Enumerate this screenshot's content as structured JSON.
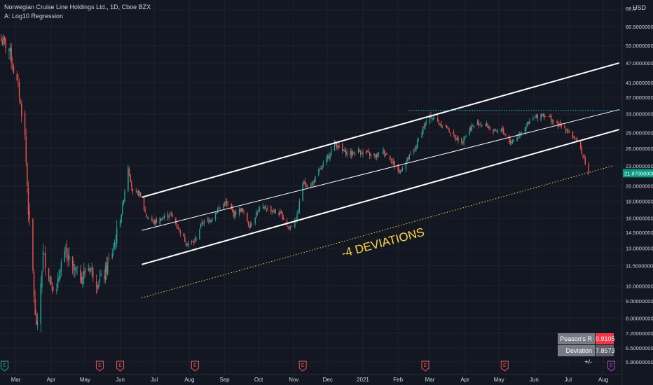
{
  "header": {
    "symbol_line": "Norwegian Cruise Line Holdings Ltd., 1D, Cboe BZX",
    "indicator_line": "A: Log10 Regression"
  },
  "currency": "USD",
  "annotation": "-4 DEVIATIONS",
  "stats": {
    "pearson_label": "Peason's R",
    "pearson_value": "0.9105",
    "deviation_label": "Deviation +/-",
    "deviation_value": "7.8573"
  },
  "colors": {
    "background": "#131722",
    "up_candle": "#26a69a",
    "down_candle": "#ef5350",
    "channel_line": "#ffffff",
    "resistance_line": "#26c6da",
    "deviation_line": "#ffd740",
    "annotation": "#ffd740",
    "last_price_bg": "#089981",
    "earnings_marker": "#ef5350",
    "earnings_marker_first": "#26a69a",
    "earnings_marker_last": "#ab47bc"
  },
  "chart_data": {
    "type": "candlestick",
    "log_scale": true,
    "grid": true,
    "ylim": [
      5.7,
      70
    ],
    "xlim": [
      "2020-02-16",
      "2021-08-17"
    ],
    "y_tick_labels": [
      "68.0",
      "60.50000000",
      "53.00000000",
      "47.00000000",
      "41.00000000",
      "37.00000000",
      "33.00000000",
      "29.00000000",
      "26.00000000",
      "23.00000000",
      "20.00000000",
      "18.00000000",
      "16.00000000",
      "14.50000000",
      "13.00000000",
      "11.50000000",
      "10.00000000",
      "9.00000000",
      "8.00000000",
      "7.20000000",
      "6.50000000",
      "5.90000000"
    ],
    "y_tick_values": [
      68.0,
      60.5,
      53.0,
      47.0,
      41.0,
      37.0,
      33.0,
      29.0,
      26.0,
      23.0,
      20.0,
      18.0,
      16.0,
      14.5,
      13.0,
      11.5,
      10.0,
      9.0,
      8.0,
      7.2,
      6.5,
      5.9
    ],
    "x_tick_labels": [
      "Mar",
      "Apr",
      "May",
      "Jun",
      "Jul",
      "Aug",
      "Sep",
      "Oct",
      "Nov",
      "Dec",
      "2021",
      "Feb",
      "Mar",
      "Apr",
      "May",
      "Jun",
      "Jul",
      "Aug"
    ],
    "x_tick_dates": [
      "2020-03-01",
      "2020-04-01",
      "2020-05-01",
      "2020-06-01",
      "2020-07-01",
      "2020-08-01",
      "2020-09-01",
      "2020-10-01",
      "2020-11-01",
      "2020-12-01",
      "2021-01-01",
      "2021-02-01",
      "2021-03-01",
      "2021-04-01",
      "2021-05-01",
      "2021-06-01",
      "2021-07-01",
      "2021-08-01"
    ],
    "last_price": 21.87,
    "last_price_label": "21.87000000",
    "price_path": [
      [
        "2020-02-17",
        55.0
      ],
      [
        "2020-02-24",
        52.0
      ],
      [
        "2020-02-28",
        45.0
      ],
      [
        "2020-03-04",
        38.0
      ],
      [
        "2020-03-09",
        28.0
      ],
      [
        "2020-03-12",
        17.0
      ],
      [
        "2020-03-16",
        11.0
      ],
      [
        "2020-03-18",
        8.0
      ],
      [
        "2020-03-20",
        7.5
      ],
      [
        "2020-03-25",
        12.5
      ],
      [
        "2020-03-31",
        10.5
      ],
      [
        "2020-04-06",
        9.5
      ],
      [
        "2020-04-09",
        11.5
      ],
      [
        "2020-04-14",
        12.5
      ],
      [
        "2020-04-20",
        11.2
      ],
      [
        "2020-04-28",
        10.6
      ],
      [
        "2020-05-05",
        11.5
      ],
      [
        "2020-05-12",
        10.2
      ],
      [
        "2020-05-18",
        10.8
      ],
      [
        "2020-05-26",
        13.0
      ],
      [
        "2020-06-02",
        16.5
      ],
      [
        "2020-06-08",
        23.0
      ],
      [
        "2020-06-12",
        19.0
      ],
      [
        "2020-06-18",
        19.0
      ],
      [
        "2020-06-24",
        16.2
      ],
      [
        "2020-07-01",
        15.5
      ],
      [
        "2020-07-08",
        16.0
      ],
      [
        "2020-07-15",
        16.5
      ],
      [
        "2020-07-22",
        15.0
      ],
      [
        "2020-07-29",
        13.5
      ],
      [
        "2020-08-05",
        13.5
      ],
      [
        "2020-08-12",
        15.5
      ],
      [
        "2020-08-19",
        15.8
      ],
      [
        "2020-08-26",
        17.0
      ],
      [
        "2020-09-02",
        17.8
      ],
      [
        "2020-09-09",
        16.5
      ],
      [
        "2020-09-16",
        17.0
      ],
      [
        "2020-09-23",
        15.2
      ],
      [
        "2020-09-30",
        16.8
      ],
      [
        "2020-10-07",
        17.2
      ],
      [
        "2020-10-14",
        16.8
      ],
      [
        "2020-10-21",
        16.4
      ],
      [
        "2020-10-28",
        14.9
      ],
      [
        "2020-11-04",
        16.2
      ],
      [
        "2020-11-09",
        20.5
      ],
      [
        "2020-11-16",
        20.0
      ],
      [
        "2020-11-23",
        22.0
      ],
      [
        "2020-11-30",
        24.0
      ],
      [
        "2020-12-07",
        27.0
      ],
      [
        "2020-12-14",
        25.5
      ],
      [
        "2020-12-21",
        25.0
      ],
      [
        "2020-12-28",
        25.5
      ],
      [
        "2021-01-05",
        25.0
      ],
      [
        "2021-01-12",
        24.5
      ],
      [
        "2021-01-19",
        25.5
      ],
      [
        "2021-01-26",
        24.0
      ],
      [
        "2021-02-02",
        22.0
      ],
      [
        "2021-02-09",
        24.0
      ],
      [
        "2021-02-16",
        26.0
      ],
      [
        "2021-02-23",
        30.0
      ],
      [
        "2021-03-02",
        32.5
      ],
      [
        "2021-03-09",
        31.0
      ],
      [
        "2021-03-16",
        30.0
      ],
      [
        "2021-03-23",
        28.0
      ],
      [
        "2021-03-30",
        27.5
      ],
      [
        "2021-04-06",
        30.0
      ],
      [
        "2021-04-13",
        31.0
      ],
      [
        "2021-04-20",
        30.5
      ],
      [
        "2021-04-27",
        29.0
      ],
      [
        "2021-05-04",
        29.5
      ],
      [
        "2021-05-11",
        27.0
      ],
      [
        "2021-05-18",
        28.5
      ],
      [
        "2021-05-25",
        30.5
      ],
      [
        "2021-06-01",
        32.0
      ],
      [
        "2021-06-08",
        33.0
      ],
      [
        "2021-06-15",
        32.0
      ],
      [
        "2021-06-22",
        30.5
      ],
      [
        "2021-06-29",
        29.8
      ],
      [
        "2021-07-06",
        28.0
      ],
      [
        "2021-07-12",
        26.0
      ],
      [
        "2021-07-19",
        21.87
      ]
    ],
    "channel": {
      "start_date": "2020-06-20",
      "end_date": "2021-08-15",
      "center": [
        14.7,
        34.0
      ],
      "upper": [
        18.5,
        47.0
      ],
      "lower": [
        11.6,
        29.6
      ],
      "lower_4_dev": [
        9.2,
        23.3
      ],
      "lower_4_dev_end_date": "2021-08-10"
    },
    "resistance": {
      "value": 33.8,
      "start_date": "2021-02-10",
      "end_date": "2021-08-17"
    },
    "earnings_dates": [
      "2020-02-20",
      "2020-05-14",
      "2020-06-01",
      "2020-08-06",
      "2020-11-09",
      "2021-02-25",
      "2021-05-06",
      "2021-08-08"
    ]
  }
}
